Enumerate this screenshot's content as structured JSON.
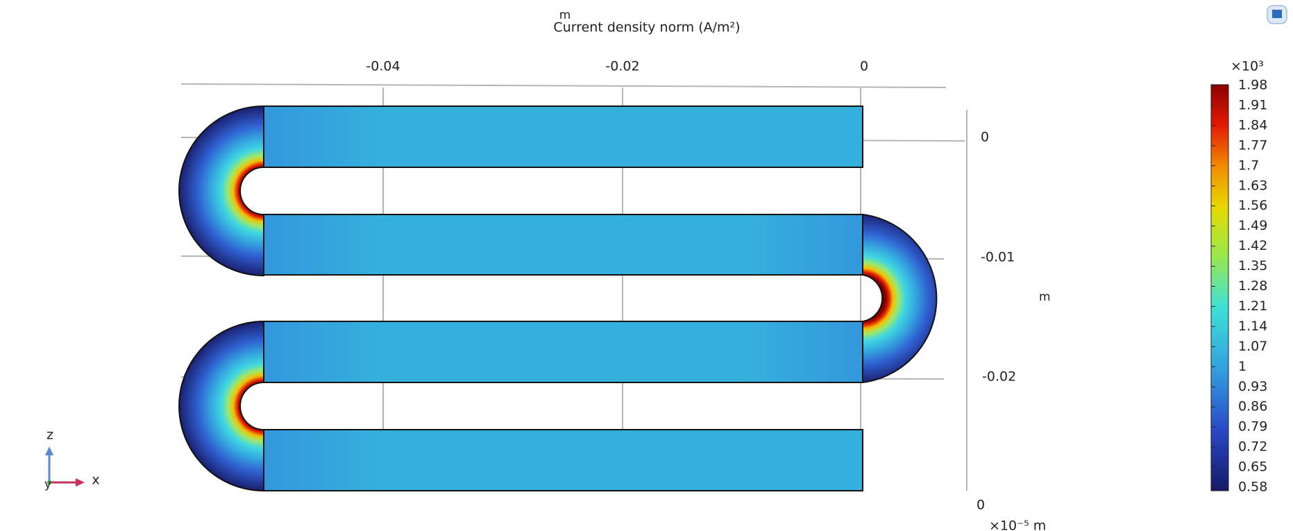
{
  "plot": {
    "title_unit": "m",
    "title": "Current density norm (A/m²)",
    "x_axis": {
      "ticks": [
        "-0.04",
        "-0.02",
        "0"
      ]
    },
    "z_axis": {
      "ticks": [
        "0",
        "-0.01",
        "-0.02"
      ],
      "unit": "m"
    },
    "y_axis": {
      "tick": "0",
      "scale": "×10⁻⁵ m"
    }
  },
  "colorbar": {
    "multiplier": "×10³",
    "labels": [
      "1.98",
      "1.91",
      "1.84",
      "1.77",
      "1.7",
      "1.63",
      "1.56",
      "1.49",
      "1.42",
      "1.35",
      "1.28",
      "1.21",
      "1.14",
      "1.07",
      "1",
      "0.93",
      "0.86",
      "0.79",
      "0.72",
      "0.65",
      "0.58"
    ]
  },
  "triad": {
    "z": "z",
    "x": "x",
    "y": "y"
  }
}
